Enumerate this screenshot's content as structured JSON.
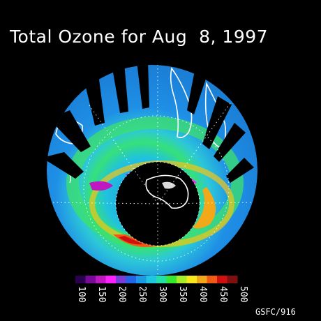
{
  "title": "Total Ozone for Aug  8, 1997",
  "credit": "GSFC/916",
  "colorbar": {
    "ticks": [
      "100",
      "150",
      "200",
      "250",
      "300",
      "350",
      "400",
      "450",
      "500"
    ],
    "colors": [
      "#2a0050",
      "#7a0a9a",
      "#c018c0",
      "#ff20ff",
      "#7b3dd6",
      "#2464e6",
      "#1b9ae8",
      "#1ec6e0",
      "#22e0a8",
      "#36e830",
      "#a8ee28",
      "#f6e81c",
      "#f2a818",
      "#f05a14",
      "#d01010",
      "#801010"
    ]
  },
  "map": {
    "ocean_color": "#1f8fe6",
    "land_color": "#ffffff",
    "polar_night_color": "#000000"
  }
}
